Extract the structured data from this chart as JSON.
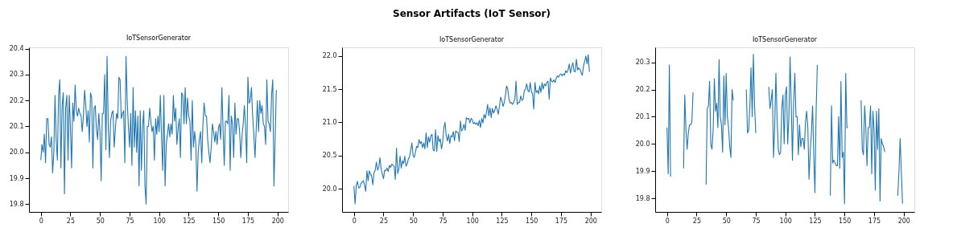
{
  "chart_data": [
    {
      "type": "line",
      "subtitle": "IoTSensorGenerator",
      "xlim": [
        -10,
        209
      ],
      "xticks": [
        0,
        25,
        50,
        75,
        100,
        125,
        150,
        175,
        200
      ],
      "ylim": [
        19.77,
        20.405
      ],
      "yticks": [
        19.8,
        19.9,
        {
          "value": 20,
          "label": "20.0"
        },
        20.1,
        20.2,
        20.3,
        20.4
      ],
      "grid": false,
      "marker": "none",
      "line_style": "solid",
      "x": [
        0,
        1,
        2,
        3,
        4,
        5,
        6,
        7,
        8,
        9,
        10,
        11,
        12,
        13,
        14,
        15,
        16,
        17,
        18,
        19,
        20,
        21,
        22,
        23,
        24,
        25,
        26,
        27,
        28,
        29,
        30,
        31,
        32,
        33,
        34,
        35,
        36,
        37,
        38,
        39,
        40,
        41,
        42,
        43,
        44,
        45,
        46,
        47,
        48,
        49,
        50,
        51,
        52,
        53,
        54,
        55,
        56,
        57,
        58,
        59,
        60,
        61,
        62,
        63,
        64,
        65,
        66,
        67,
        68,
        69,
        70,
        71,
        72,
        73,
        74,
        75,
        76,
        77,
        78,
        79,
        80,
        81,
        82,
        83,
        84,
        85,
        86,
        87,
        88,
        89,
        90,
        91,
        92,
        93,
        94,
        95,
        96,
        97,
        98,
        99,
        100,
        101,
        102,
        103,
        104,
        105,
        106,
        107,
        108,
        109,
        110,
        111,
        112,
        113,
        114,
        115,
        116,
        117,
        118,
        119,
        120,
        121,
        122,
        123,
        124,
        125,
        126,
        127,
        128,
        129,
        130,
        131,
        132,
        133,
        134,
        135,
        136,
        137,
        138,
        139,
        140,
        141,
        142,
        143,
        144,
        145,
        146,
        147,
        148,
        149,
        150,
        151,
        152,
        153,
        154,
        155,
        156,
        157,
        158,
        159,
        160,
        161,
        162,
        163,
        164,
        165,
        166,
        167,
        168,
        169,
        170,
        171,
        172,
        173,
        174,
        175,
        176,
        177,
        178,
        179,
        180,
        181,
        182,
        183,
        184,
        185,
        186,
        187,
        188,
        189,
        190,
        191,
        192,
        193,
        194,
        195,
        196,
        197,
        198,
        199
      ],
      "series": [
        {
          "color": "#1f77b4",
          "values": [
            19.97,
            20.03,
            20.0,
            20.07,
            19.96,
            20.13,
            20.13,
            20.03,
            20.02,
            20.06,
            19.92,
            20.0,
            20.22,
            20.05,
            19.97,
            20.22,
            20.28,
            19.94,
            20.18,
            20.23,
            19.84,
            20.17,
            20.22,
            19.97,
            20.22,
            20.1,
            19.94,
            20.19,
            20.12,
            20.26,
            20.16,
            20.14,
            20.17,
            20.15,
            20.14,
            20.08,
            20.14,
            20.24,
            20.18,
            20.1,
            20.16,
            20.04,
            20.23,
            20.21,
            19.94,
            20.17,
            20.18,
            20.09,
            20.05,
            20.15,
            20.08,
            19.89,
            20.15,
            20.15,
            20.3,
            20.01,
            20.37,
            20.1,
            19.98,
            20.12,
            20.15,
            20.16,
            20.02,
            20.09,
            20.15,
            20.13,
            20.29,
            20.28,
            20.13,
            20.15,
            20.16,
            19.96,
            20.37,
            20.2,
            20.1,
            20.02,
            20.15,
            19.95,
            20.25,
            20.02,
            20.16,
            20.0,
            20.14,
            19.87,
            20.16,
            19.93,
            20.1,
            20.16,
            19.87,
            19.8,
            20.1,
            20.1,
            20.17,
            20.12,
            20.08,
            20.1,
            19.97,
            20.13,
            20.07,
            20.14,
            20.08,
            20.22,
            20.06,
            19.93,
            20.22,
            19.87,
            20.03,
            20.07,
            20.11,
            20.06,
            20.11,
            20.07,
            20.22,
            20.12,
            20.17,
            20.03,
            20.09,
            20.13,
            19.98,
            20.23,
            20.22,
            20.11,
            20.25,
            20.11,
            20.21,
            20.14,
            20.12,
            19.97,
            20.2,
            20.02,
            20.08,
            20.03,
            19.85,
            20.0,
            20.05,
            20.08,
            19.96,
            20.11,
            20.19,
            20.14,
            20.14,
            20.05,
            20.0,
            19.96,
            20.02,
            20.11,
            20.08,
            20.04,
            20.08,
            20.03,
            20.09,
            20.11,
            20.05,
            20.25,
            20.09,
            19.95,
            20.12,
            20.12,
            20.11,
            20.22,
            19.93,
            20.14,
            20.11,
            19.98,
            20.19,
            20.07,
            20.13,
            20.13,
            20.08,
            19.98,
            20.06,
            20.11,
            20.18,
            20.1,
            19.96,
            20.29,
            20.19,
            20.2,
            20.25,
            20.14,
            20.07,
            19.98,
            20.09,
            20.2,
            20.08,
            20.2,
            20.15,
            20.18,
            20.11,
            20.1,
            20.03,
            20.28,
            20.12,
            20.11,
            20.08,
            20.22,
            20.28,
            19.87,
            20.05,
            20.24
          ]
        }
      ]
    },
    {
      "type": "line",
      "title": "Sensor Artifacts (IoT Sensor)",
      "subtitle": "IoTSensorGenerator",
      "xlim": [
        -10,
        209
      ],
      "xticks": [
        0,
        25,
        50,
        75,
        100,
        125,
        150,
        175,
        200
      ],
      "ylim": [
        19.65,
        22.13
      ],
      "yticks": [
        {
          "value": 20,
          "label": "20.0"
        },
        20.5,
        {
          "value": 21,
          "label": "21.0"
        },
        21.5,
        {
          "value": 22,
          "label": "22.0"
        }
      ],
      "grid": false,
      "marker": "none",
      "line_style": "solid",
      "x": [
        0,
        1,
        2,
        3,
        4,
        5,
        6,
        7,
        8,
        9,
        10,
        11,
        12,
        13,
        14,
        15,
        16,
        17,
        18,
        19,
        20,
        21,
        22,
        23,
        24,
        25,
        26,
        27,
        28,
        29,
        30,
        31,
        32,
        33,
        34,
        35,
        36,
        37,
        38,
        39,
        40,
        41,
        42,
        43,
        44,
        45,
        46,
        47,
        48,
        49,
        50,
        51,
        52,
        53,
        54,
        55,
        56,
        57,
        58,
        59,
        60,
        61,
        62,
        63,
        64,
        65,
        66,
        67,
        68,
        69,
        70,
        71,
        72,
        73,
        74,
        75,
        76,
        77,
        78,
        79,
        80,
        81,
        82,
        83,
        84,
        85,
        86,
        87,
        88,
        89,
        90,
        91,
        92,
        93,
        94,
        95,
        96,
        97,
        98,
        99,
        100,
        101,
        102,
        103,
        104,
        105,
        106,
        107,
        108,
        109,
        110,
        111,
        112,
        113,
        114,
        115,
        116,
        117,
        118,
        119,
        120,
        121,
        122,
        123,
        124,
        125,
        126,
        127,
        128,
        129,
        130,
        131,
        132,
        133,
        134,
        135,
        136,
        137,
        138,
        139,
        140,
        141,
        142,
        143,
        144,
        145,
        146,
        147,
        148,
        149,
        150,
        151,
        152,
        153,
        154,
        155,
        156,
        157,
        158,
        159,
        160,
        161,
        162,
        163,
        164,
        165,
        166,
        167,
        168,
        169,
        170,
        171,
        172,
        173,
        174,
        175,
        176,
        177,
        178,
        179,
        180,
        181,
        182,
        183,
        184,
        185,
        186,
        187,
        188,
        189,
        190,
        191,
        192,
        193,
        194,
        195,
        196,
        197,
        198,
        199
      ],
      "series": [
        {
          "color": "#1f77b4",
          "values": [
            20.04,
            19.77,
            20.05,
            20.11,
            20.01,
            20.02,
            20.08,
            20.1,
            20.12,
            20.05,
            19.96,
            20.27,
            20.12,
            20.27,
            20.22,
            20.19,
            20.06,
            20.24,
            20.28,
            20.4,
            20.28,
            20.32,
            20.47,
            20.3,
            20.22,
            20.15,
            20.28,
            20.27,
            20.31,
            20.26,
            20.35,
            20.32,
            20.37,
            20.35,
            20.34,
            20.14,
            20.61,
            20.23,
            20.3,
            20.49,
            20.31,
            20.42,
            20.38,
            20.49,
            20.34,
            20.37,
            20.45,
            20.48,
            20.58,
            20.69,
            20.5,
            20.47,
            20.55,
            20.64,
            20.62,
            20.74,
            20.68,
            20.71,
            20.62,
            20.69,
            20.6,
            20.84,
            20.62,
            20.78,
            20.7,
            20.8,
            20.82,
            20.58,
            20.57,
            20.89,
            20.56,
            20.8,
            20.71,
            20.75,
            20.6,
            20.7,
            20.92,
            21.0,
            20.8,
            20.72,
            20.82,
            20.68,
            20.8,
            20.78,
            20.86,
            20.72,
            20.87,
            20.85,
            20.85,
            20.71,
            21.02,
            20.87,
            20.9,
            20.97,
            20.88,
            21.07,
            21.05,
            21.06,
            20.99,
            21.06,
            21.04,
            20.98,
            21.0,
            20.97,
            20.99,
            20.95,
            21.03,
            20.92,
            21.06,
            20.99,
            21.12,
            21.06,
            21.15,
            21.27,
            21.1,
            21.22,
            21.07,
            21.21,
            21.14,
            21.18,
            21.25,
            21.2,
            21.12,
            21.25,
            21.38,
            21.33,
            21.24,
            21.3,
            21.4,
            21.55,
            21.5,
            21.35,
            21.29,
            21.3,
            21.27,
            21.3,
            21.35,
            21.62,
            21.27,
            21.3,
            21.3,
            21.4,
            21.33,
            21.35,
            21.48,
            21.5,
            21.58,
            21.48,
            21.46,
            21.6,
            21.46,
            21.43,
            21.2,
            21.6,
            21.45,
            21.48,
            21.43,
            21.55,
            21.45,
            21.6,
            21.5,
            21.58,
            21.55,
            21.6,
            21.62,
            21.35,
            21.67,
            21.62,
            21.61,
            21.64,
            21.6,
            21.67,
            21.7,
            21.68,
            21.72,
            21.73,
            21.7,
            21.73,
            21.71,
            21.78,
            21.75,
            21.79,
            21.88,
            21.74,
            21.83,
            21.9,
            21.77,
            21.76,
            21.95,
            21.79,
            21.82,
            21.8,
            21.75,
            21.71,
            21.85,
            21.92,
            22.0,
            21.88,
            22.02,
            21.76
          ]
        }
      ]
    },
    {
      "type": "line",
      "subtitle": "IoTSensorGenerator",
      "xlim": [
        -10,
        209
      ],
      "xticks": [
        0,
        25,
        50,
        75,
        100,
        125,
        150,
        175,
        200
      ],
      "ylim": [
        19.75,
        20.355
      ],
      "yticks": [
        19.8,
        19.9,
        {
          "value": 20,
          "label": "20.0"
        },
        20.1,
        20.2,
        20.3
      ],
      "grid": false,
      "marker": "none",
      "line_style": "solid",
      "x": [
        0,
        1,
        2,
        3,
        4,
        5,
        6,
        7,
        8,
        9,
        10,
        11,
        12,
        13,
        14,
        15,
        16,
        17,
        18,
        19,
        20,
        21,
        22,
        23,
        24,
        25,
        26,
        27,
        28,
        29,
        30,
        31,
        32,
        33,
        34,
        35,
        36,
        37,
        38,
        39,
        40,
        41,
        42,
        43,
        44,
        45,
        46,
        47,
        48,
        49,
        50,
        51,
        52,
        53,
        54,
        55,
        56,
        57,
        58,
        59,
        60,
        61,
        62,
        63,
        64,
        65,
        66,
        67,
        68,
        69,
        70,
        71,
        72,
        73,
        74,
        75,
        76,
        77,
        78,
        79,
        80,
        81,
        82,
        83,
        84,
        85,
        86,
        87,
        88,
        89,
        90,
        91,
        92,
        93,
        94,
        95,
        96,
        97,
        98,
        99,
        100,
        101,
        102,
        103,
        104,
        105,
        106,
        107,
        108,
        109,
        110,
        111,
        112,
        113,
        114,
        115,
        116,
        117,
        118,
        119,
        120,
        121,
        122,
        123,
        124,
        125,
        126,
        127,
        128,
        129,
        130,
        131,
        132,
        133,
        134,
        135,
        136,
        137,
        138,
        139,
        140,
        141,
        142,
        143,
        144,
        145,
        146,
        147,
        148,
        149,
        150,
        151,
        152,
        153,
        154,
        155,
        156,
        157,
        158,
        159,
        160,
        161,
        162,
        163,
        164,
        165,
        166,
        167,
        168,
        169,
        170,
        171,
        172,
        173,
        174,
        175,
        176,
        177,
        178,
        179,
        180,
        181,
        182,
        183,
        184,
        185,
        186,
        187,
        188,
        189,
        190,
        191,
        192,
        193,
        194,
        195,
        196,
        197,
        198,
        199
      ],
      "series": [
        {
          "color": "#1f77b4",
          "values": [
            20.06,
            19.89,
            20.29,
            19.88,
            null,
            null,
            null,
            null,
            null,
            null,
            null,
            null,
            null,
            null,
            19.91,
            20.18,
            20.05,
            19.98,
            20.04,
            20.07,
            20.07,
            20.08,
            20.19,
            null,
            null,
            null,
            null,
            null,
            null,
            null,
            null,
            null,
            null,
            19.85,
            20.13,
            20.14,
            20.23,
            20.0,
            19.98,
            20.05,
            20.24,
            20.12,
            20.15,
            20.06,
            20.31,
            20.1,
            20.07,
            19.97,
            20.25,
            20.07,
            20.26,
            20.1,
            20.06,
            19.99,
            19.95,
            20.2,
            20.16,
            null,
            null,
            null,
            null,
            null,
            null,
            null,
            null,
            null,
            null,
            20.2,
            20.04,
            20.05,
            20.14,
            20.28,
            20.1,
            20.33,
            20.14,
            20.04,
            null,
            null,
            null,
            null,
            null,
            null,
            null,
            null,
            null,
            null,
            20.21,
            20.13,
            20.16,
            20.2,
            19.95,
            20.06,
            20.26,
            20.1,
            19.98,
            19.96,
            19.97,
            20.13,
            20.18,
            20.0,
            20.18,
            20.21,
            20.0,
            20.1,
            20.32,
            20.14,
            19.94,
            20.15,
            20.26,
            20.1,
            20.1,
            19.96,
            20.07,
            19.99,
            20.02,
            20.02,
            19.98,
            20.08,
            20.12,
            20.06,
            19.87,
            19.97,
            20.04,
            20.14,
            19.96,
            19.82,
            20.12,
            20.29,
            null,
            null,
            null,
            null,
            null,
            null,
            null,
            null,
            null,
            null,
            19.81,
            20.14,
            19.93,
            19.94,
            19.93,
            19.92,
            19.92,
            20.1,
            19.91,
            20.23,
            19.95,
            19.97,
            19.78,
            20.26,
            20.06,
            20.06,
            null,
            null,
            null,
            null,
            null,
            null,
            null,
            null,
            null,
            null,
            20.16,
            19.98,
            19.96,
            20.14,
            20.06,
            19.92,
            20.06,
            20.06,
            20.14,
            19.89,
            20.12,
            20.05,
            19.83,
            20.12,
            19.98,
            20.13,
            19.79,
            20.02,
            20.0,
            19.99,
            19.97,
            null,
            null,
            null,
            null,
            null,
            null,
            null,
            null,
            null,
            null,
            19.81,
            19.9,
            20.02,
            19.9,
            19.78
          ]
        }
      ]
    }
  ]
}
